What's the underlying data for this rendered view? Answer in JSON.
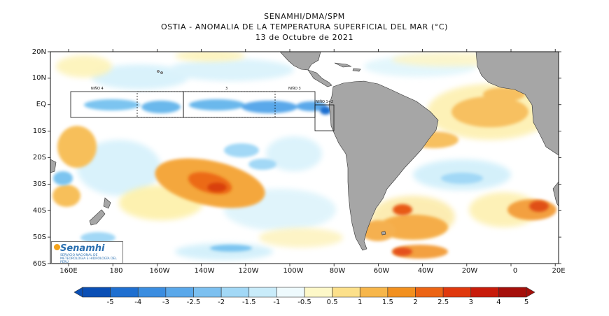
{
  "header": {
    "line1": "SENAMHI/DMA/SPM",
    "line2": "OSTIA - ANOMALIA DE LA TEMPERATURA SUPERFICIAL DEL MAR (°C)",
    "line3": "13 de Octubre de 2021"
  },
  "axes": {
    "lat_labels": [
      "20N",
      "10N",
      "EQ",
      "10S",
      "20S",
      "30S",
      "40S",
      "50S",
      "60S"
    ],
    "lon_labels": [
      "160E",
      "180",
      "160W",
      "140W",
      "120W",
      "100W",
      "80W",
      "60W",
      "40W",
      "20W",
      "0",
      "20E"
    ]
  },
  "regions": {
    "nino4": "NIÑO 4",
    "nino3": "NIÑO 3",
    "nino34": "3",
    "nino12": "NIÑO 1+2"
  },
  "colorbar": {
    "labels": [
      "-5",
      "-4",
      "-3",
      "-2.5",
      "-2",
      "-1.5",
      "-1",
      "-0.5",
      "0.5",
      "1",
      "1.5",
      "2",
      "2.5",
      "3",
      "4",
      "5"
    ],
    "colors": [
      "#0a4fb5",
      "#1f6fd0",
      "#3b8de0",
      "#5aa8ea",
      "#7cc0f0",
      "#a2d8f6",
      "#c9ecfa",
      "#eefafd",
      "#fdf8c8",
      "#fce08a",
      "#f7b64a",
      "#f2901f",
      "#ec6414",
      "#e0380d",
      "#c81b0a",
      "#a50f0a"
    ]
  },
  "logo": {
    "name": "Senamhi",
    "subtitle": "SERVICIO NACIONAL DE METEOROLOGÍA E HIDROLOGÍA DEL PERÚ"
  },
  "map_colors": {
    "land": "#a6a6a6",
    "ocean": "#ffffff"
  }
}
